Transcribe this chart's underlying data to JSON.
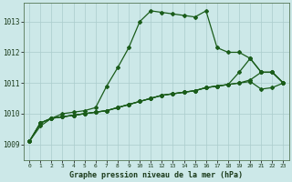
{
  "title": "Graphe pression niveau de la mer (hPa)",
  "bg_color": "#cce8e8",
  "grid_color": "#aacccc",
  "line_color": "#1a5c1a",
  "ylim": [
    1008.5,
    1013.6
  ],
  "xlim": [
    -0.5,
    23.5
  ],
  "yticks": [
    1009,
    1010,
    1011,
    1012,
    1013
  ],
  "xticks": [
    0,
    1,
    2,
    3,
    4,
    5,
    6,
    7,
    8,
    9,
    10,
    11,
    12,
    13,
    14,
    15,
    16,
    17,
    18,
    19,
    20,
    21,
    22,
    23
  ],
  "series": [
    [
      1009.1,
      1009.6,
      1009.85,
      1010.0,
      1010.05,
      1010.1,
      1010.2,
      1010.9,
      1011.5,
      1012.15,
      1013.0,
      1013.35,
      1013.3,
      1013.25,
      1013.2,
      1013.15,
      1013.35,
      1012.15,
      1012.0,
      1012.0,
      1011.8,
      1011.35,
      1011.35,
      1011.0
    ],
    [
      1009.1,
      1009.7,
      1009.85,
      1009.9,
      1009.95,
      1010.0,
      1010.05,
      1010.1,
      1010.2,
      1010.3,
      1010.4,
      1010.5,
      1010.6,
      1010.65,
      1010.7,
      1010.75,
      1010.85,
      1010.9,
      1010.95,
      1011.35,
      1011.8,
      1011.35,
      1011.35,
      1011.0
    ],
    [
      1009.1,
      1009.7,
      1009.85,
      1009.9,
      1009.95,
      1010.0,
      1010.05,
      1010.1,
      1010.2,
      1010.3,
      1010.4,
      1010.5,
      1010.6,
      1010.65,
      1010.7,
      1010.75,
      1010.85,
      1010.9,
      1010.95,
      1011.0,
      1011.1,
      1011.35,
      1011.35,
      1011.0
    ],
    [
      1009.1,
      1009.7,
      1009.85,
      1009.9,
      1009.95,
      1010.0,
      1010.05,
      1010.1,
      1010.2,
      1010.3,
      1010.4,
      1010.5,
      1010.6,
      1010.65,
      1010.7,
      1010.75,
      1010.85,
      1010.9,
      1010.95,
      1011.0,
      1011.05,
      1010.8,
      1010.85,
      1011.0
    ]
  ]
}
